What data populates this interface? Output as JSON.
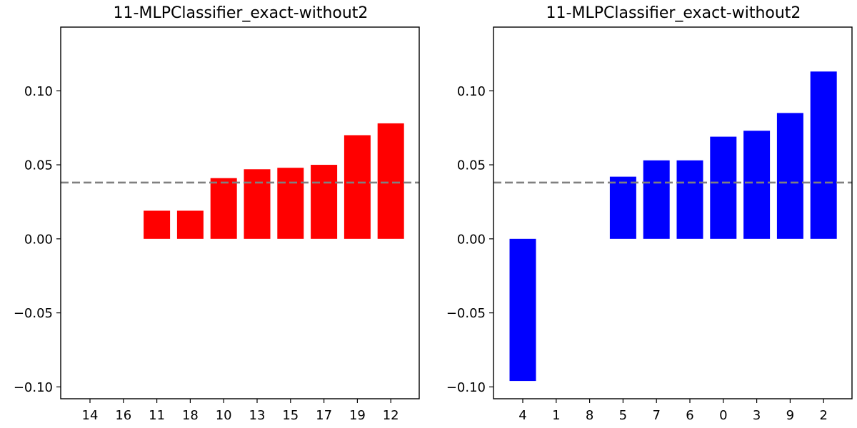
{
  "chart_data": [
    {
      "type": "bar",
      "title": "11-MLPClassifier_exact-without2",
      "xlabel": "",
      "ylabel": "",
      "categories": [
        "14",
        "16",
        "11",
        "18",
        "10",
        "13",
        "15",
        "17",
        "19",
        "12"
      ],
      "values": [
        0,
        0,
        0.019,
        0.019,
        0.041,
        0.047,
        0.048,
        0.05,
        0.07,
        0.078
      ],
      "color": "#ff0000",
      "reference_line": 0.038,
      "reference_line_color": "#808080",
      "ylim": [
        -0.108,
        0.143
      ],
      "yticks": [
        -0.1,
        -0.05,
        0.0,
        0.05,
        0.1
      ],
      "ytick_labels": [
        "−0.10",
        "−0.05",
        "0.00",
        "0.05",
        "0.10"
      ],
      "grid": false
    },
    {
      "type": "bar",
      "title": "11-MLPClassifier_exact-without2",
      "xlabel": "",
      "ylabel": "",
      "categories": [
        "4",
        "1",
        "8",
        "5",
        "7",
        "6",
        "0",
        "3",
        "9",
        "2"
      ],
      "values": [
        -0.096,
        0,
        0,
        0.042,
        0.053,
        0.053,
        0.069,
        0.073,
        0.085,
        0.113
      ],
      "color": "#0000ff",
      "reference_line": 0.038,
      "reference_line_color": "#808080",
      "ylim": [
        -0.108,
        0.143
      ],
      "yticks": [
        -0.1,
        -0.05,
        0.0,
        0.05,
        0.1
      ],
      "ytick_labels": [
        "−0.10",
        "−0.05",
        "0.00",
        "0.05",
        "0.10"
      ],
      "grid": false
    }
  ]
}
